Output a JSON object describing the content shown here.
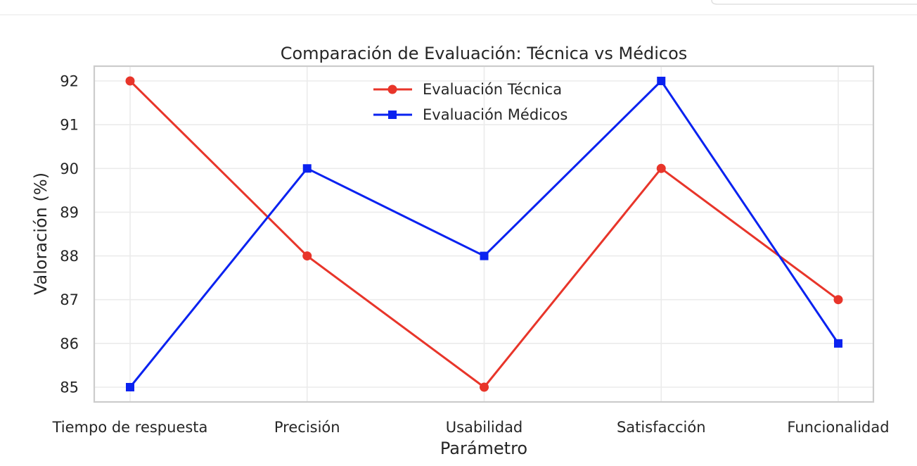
{
  "chart_data": {
    "type": "line",
    "title": "Comparación de Evaluación: Técnica vs Médicos",
    "xlabel": "Parámetro",
    "ylabel": "Valoración (%)",
    "categories": [
      "Tiempo de respuesta",
      "Precisión",
      "Usabilidad",
      "Satisfacción",
      "Funcionalidad"
    ],
    "yticks": [
      "85",
      "86",
      "87",
      "88",
      "89",
      "90",
      "91",
      "92"
    ],
    "ylim": [
      84.7,
      92.35
    ],
    "grid": true,
    "legend_position": "top-center",
    "series": [
      {
        "name": "Evaluación Técnica",
        "values": [
          92,
          88,
          85,
          90,
          87
        ],
        "color": "#e8352a",
        "marker": "circle"
      },
      {
        "name": "Evaluación Médicos",
        "values": [
          85,
          90,
          88,
          92,
          86
        ],
        "color": "#0a22f0",
        "marker": "square"
      }
    ]
  }
}
